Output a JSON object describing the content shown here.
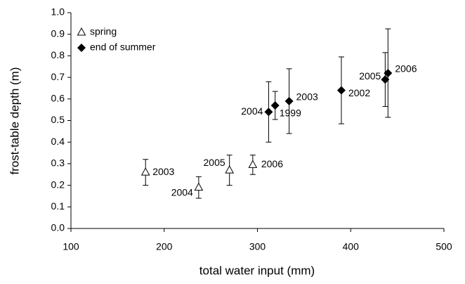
{
  "chart_data": {
    "type": "scatter",
    "xlabel": "total water input (mm)",
    "ylabel": "frost-table depth (m)",
    "xlim": [
      100,
      500
    ],
    "xticks": [
      100,
      200,
      300,
      400,
      500
    ],
    "ylim": [
      0,
      1
    ],
    "yticks": [
      {
        "value": 0,
        "label": "0.0"
      },
      {
        "value": 0.1,
        "label": "0.1"
      },
      {
        "value": 0.2,
        "label": "0.2"
      },
      {
        "value": 0.3,
        "label": "0.3"
      },
      {
        "value": 0.4,
        "label": "0.4"
      },
      {
        "value": 0.5,
        "label": "0.5"
      },
      {
        "value": 0.6,
        "label": "0.6"
      },
      {
        "value": 0.7,
        "label": "0.7"
      },
      {
        "value": 0.8,
        "label": "0.8"
      },
      {
        "value": 0.9,
        "label": "0.9"
      },
      {
        "value": 1,
        "label": "1.0"
      }
    ],
    "legend": "upper left",
    "series": [
      {
        "name": "spring",
        "marker": "triangle",
        "color": "#000000",
        "x": [
          180,
          237,
          270,
          295
        ],
        "values": [
          0.26,
          0.19,
          0.27,
          0.295
        ],
        "errors": [
          0.06,
          0.05,
          0.07,
          0.045
        ],
        "labels": [
          "2003",
          "2004",
          "2005",
          "2006"
        ]
      },
      {
        "name": "end of summer",
        "marker": "diamond",
        "color": "#000000",
        "x": [
          312,
          319,
          334,
          390,
          437,
          440
        ],
        "values": [
          0.54,
          0.57,
          0.59,
          0.64,
          0.69,
          0.72
        ],
        "errors": [
          0.14,
          0.065,
          0.15,
          0.155,
          0.125,
          0.205
        ],
        "labels": [
          "2004",
          "1999",
          "2003",
          "2002",
          "2005",
          "2006"
        ]
      }
    ]
  }
}
